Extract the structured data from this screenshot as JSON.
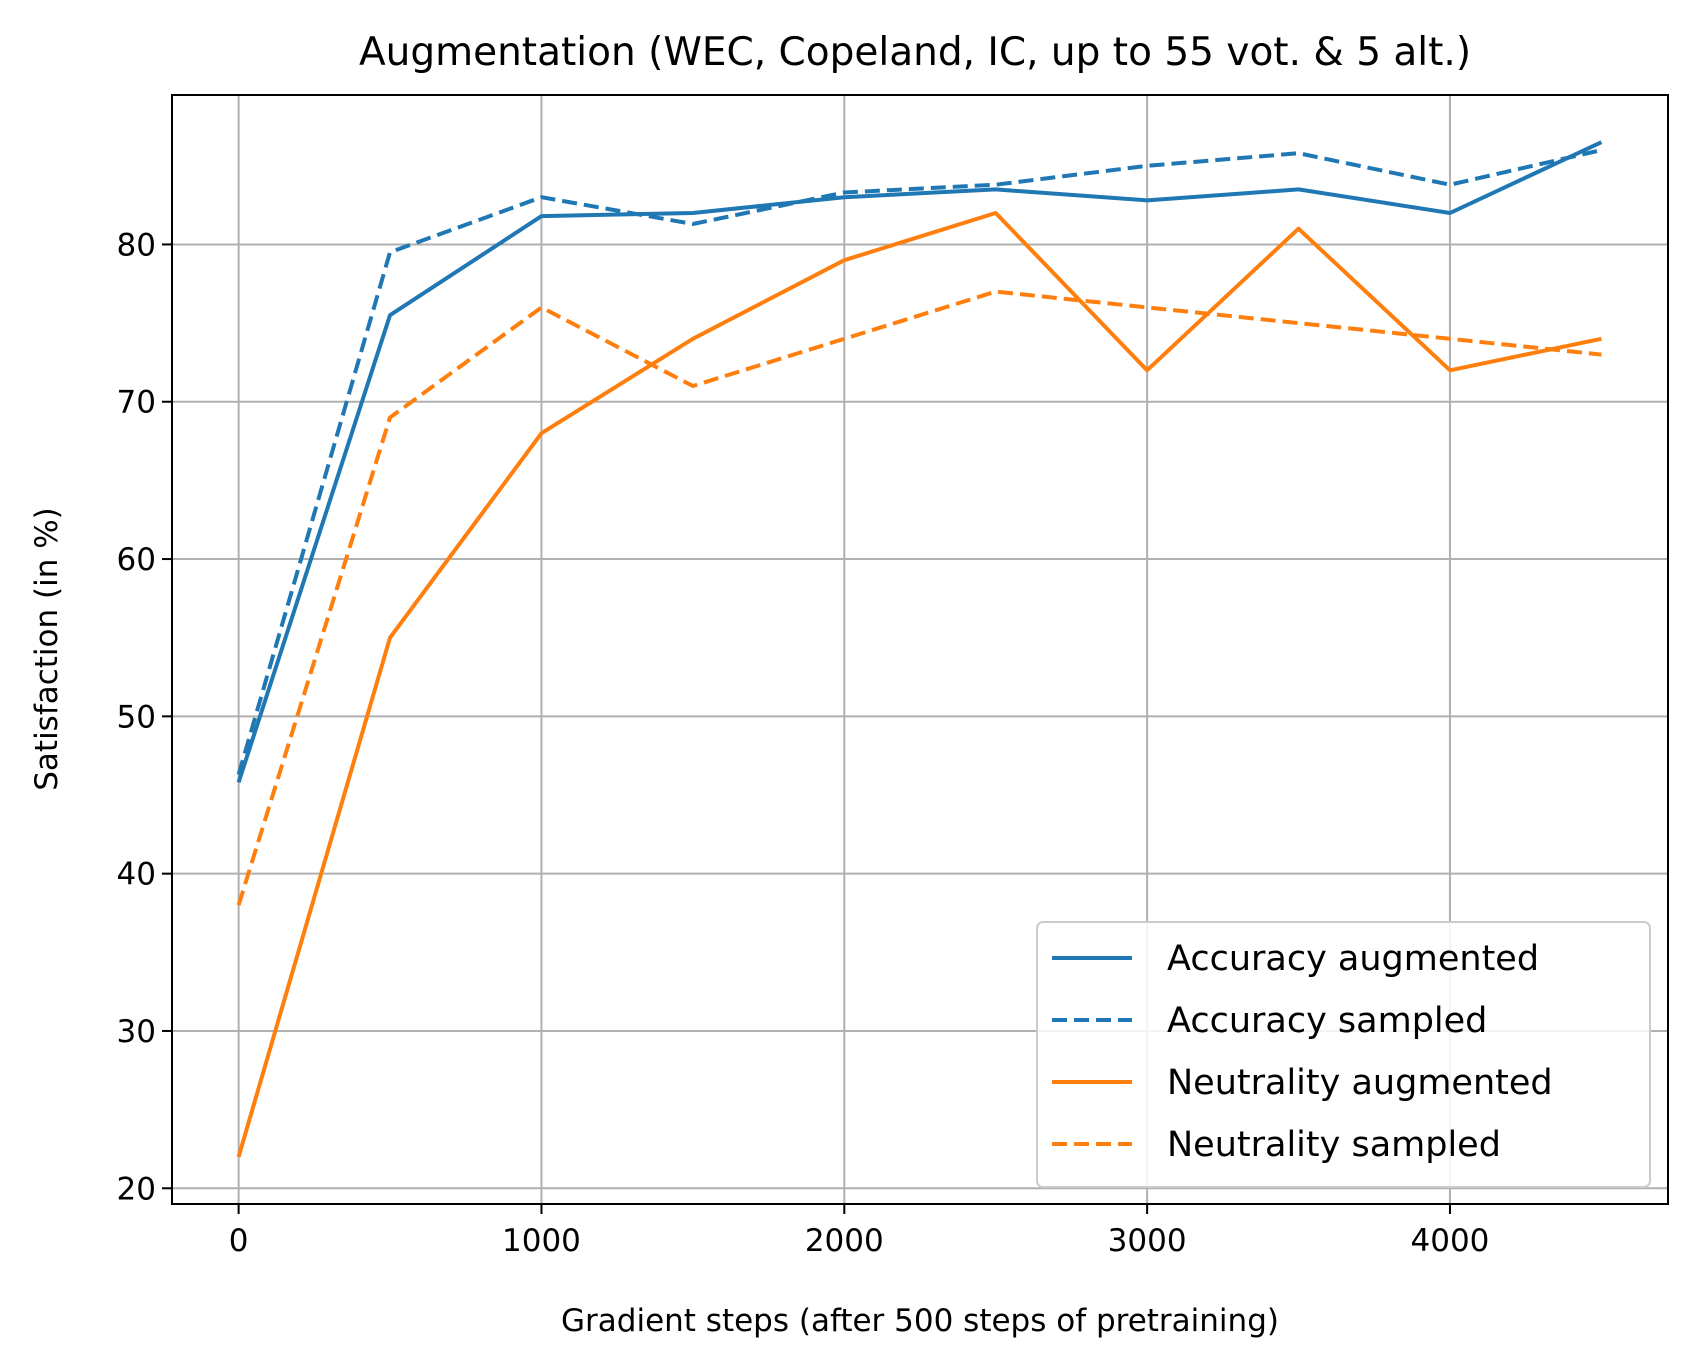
{
  "chart_data": {
    "type": "line",
    "title": "Augmentation (WEC, Copeland, IC, up to 55 vot. & 5 alt.)",
    "xlabel": "Gradient steps (after 500 steps of pretraining)",
    "ylabel": "Satisfaction (in %)",
    "xlim": [
      -220,
      4720
    ],
    "ylim": [
      19,
      89.5
    ],
    "xticks": [
      0,
      1000,
      2000,
      3000,
      4000
    ],
    "yticks": [
      20,
      30,
      40,
      50,
      60,
      70,
      80
    ],
    "grid": true,
    "legend_position": "lower-right",
    "x": [
      0,
      500,
      1000,
      1500,
      2000,
      2500,
      3000,
      3500,
      4000,
      4500
    ],
    "series": [
      {
        "name": "Accuracy augmented",
        "color": "#1f77b4",
        "style": "solid",
        "values": [
          45.8,
          75.5,
          81.8,
          82.0,
          83.0,
          83.5,
          82.8,
          83.5,
          82.0,
          86.5
        ]
      },
      {
        "name": "Accuracy sampled",
        "color": "#1f77b4",
        "style": "dashed",
        "values": [
          46.3,
          79.5,
          83.0,
          81.3,
          83.3,
          83.8,
          85.0,
          85.8,
          83.8,
          86.0
        ]
      },
      {
        "name": "Neutrality augmented",
        "color": "#ff7f0e",
        "style": "solid",
        "values": [
          22.0,
          55.0,
          68.0,
          74.0,
          79.0,
          82.0,
          72.0,
          81.0,
          72.0,
          74.0
        ]
      },
      {
        "name": "Neutrality sampled",
        "color": "#ff7f0e",
        "style": "dashed",
        "values": [
          38.0,
          69.0,
          76.0,
          71.0,
          74.0,
          77.0,
          76.0,
          75.0,
          74.0,
          73.0
        ]
      }
    ]
  }
}
